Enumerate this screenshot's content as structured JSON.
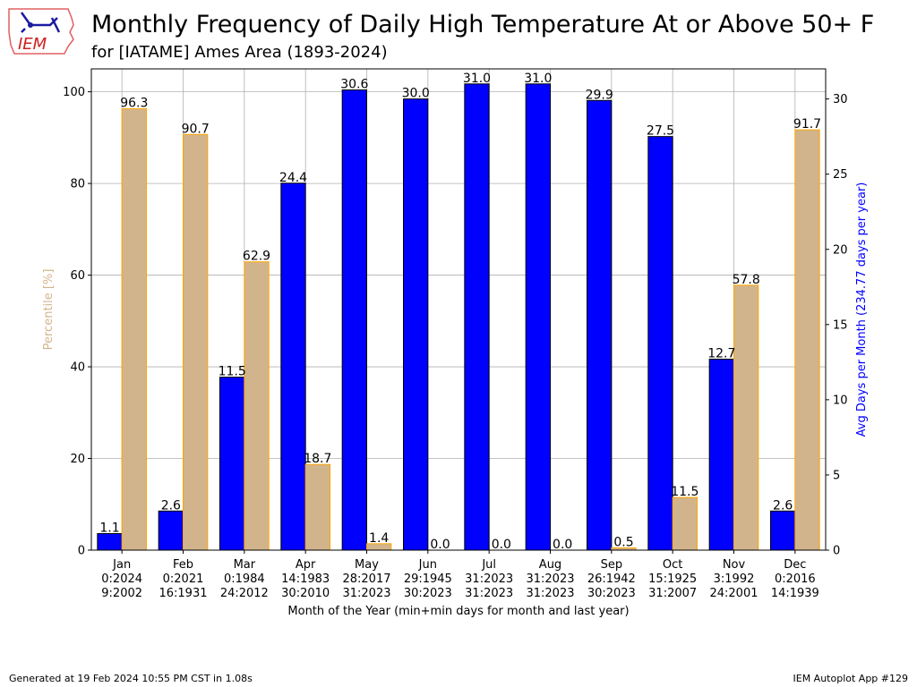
{
  "header": {
    "title": "Monthly Frequency of Daily High Temperature At or Above 50+ F",
    "subtitle": "for [IATAME] Ames Area (1893-2024)"
  },
  "logo": {
    "text": "IEM",
    "icon": "iowa-state-outline-logo"
  },
  "footer": {
    "generated": "Generated at 19 Feb 2024 10:55 PM CST in 1.08s",
    "app": "IEM Autoplot App #129"
  },
  "chart_data": {
    "type": "bar",
    "categories": [
      "Jan",
      "Feb",
      "Mar",
      "Apr",
      "May",
      "Jun",
      "Jul",
      "Aug",
      "Sep",
      "Oct",
      "Nov",
      "Dec"
    ],
    "category_sublabels": [
      [
        "0:2024",
        "9:2002"
      ],
      [
        "0:2021",
        "16:1931"
      ],
      [
        "0:1984",
        "24:2012"
      ],
      [
        "14:1983",
        "30:2010"
      ],
      [
        "28:2017",
        "31:2023"
      ],
      [
        "29:1945",
        "30:2023"
      ],
      [
        "31:2023",
        "31:2023"
      ],
      [
        "31:2023",
        "31:2023"
      ],
      [
        "26:1942",
        "30:2023"
      ],
      [
        "15:1925",
        "31:2007"
      ],
      [
        "3:1992",
        "24:2001"
      ],
      [
        "0:2016",
        "14:1939"
      ]
    ],
    "xlabel": "Month of the Year (min+min days for month and last year)",
    "ylabel_left": "Percentile [%]",
    "ylabel_right": "Avg Days per Month (234.77 days per year)",
    "ylim_left": [
      0,
      105
    ],
    "ylim_right": [
      0,
      32
    ],
    "yticks_left": [
      0,
      20,
      40,
      60,
      80,
      100
    ],
    "yticks_right": [
      0,
      5,
      10,
      15,
      20,
      25,
      30
    ],
    "grid": true,
    "series": [
      {
        "axis": "right",
        "color": "#0000ff",
        "edge": "#000000",
        "values": [
          1.1,
          2.6,
          11.5,
          24.4,
          30.6,
          30.0,
          31.0,
          31.0,
          29.9,
          27.5,
          12.7,
          2.6
        ],
        "labels": [
          "1.1",
          "2.6",
          "11.5",
          "24.4",
          "30.6",
          "30.0",
          "31.0",
          "31.0",
          "29.9",
          "27.5",
          "12.7",
          "2.6"
        ]
      },
      {
        "axis": "left",
        "color": "#d2b48c",
        "edge": "#ffa500",
        "values": [
          96.3,
          90.7,
          62.9,
          18.7,
          1.4,
          0.0,
          0.0,
          0.0,
          0.5,
          11.5,
          57.8,
          91.7
        ],
        "labels": [
          "96.3",
          "90.7",
          "62.9",
          "18.7",
          "1.4",
          "0.0",
          "0.0",
          "0.0",
          "0.5",
          "11.5",
          "57.8",
          "91.7"
        ]
      }
    ],
    "colors": {
      "left_axis_label": "#d2b48c",
      "right_axis_label": "#0000ff"
    }
  }
}
